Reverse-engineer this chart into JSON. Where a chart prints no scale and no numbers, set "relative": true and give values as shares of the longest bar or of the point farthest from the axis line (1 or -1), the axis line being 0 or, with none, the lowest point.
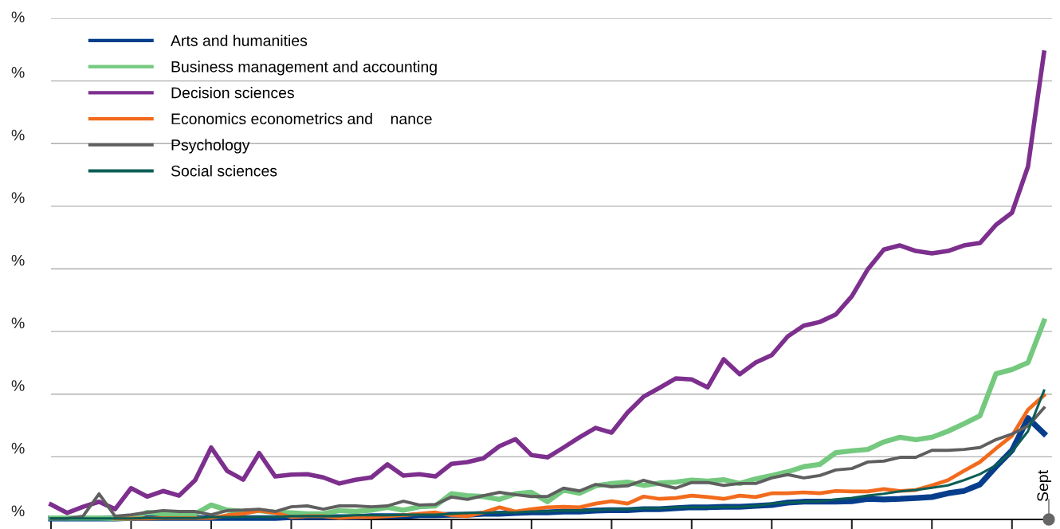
{
  "chart_data": {
    "type": "line",
    "relative": true,
    "grid": "y",
    "legend": "top left",
    "marker": "none",
    "line_style": "solid",
    "annotations": [
      "%",
      "%",
      "%",
      "%",
      "%",
      "%",
      "%",
      "%",
      "%",
      {
        "text": "Sept"
      }
    ],
    "categories": [
      null,
      null,
      null,
      null,
      null,
      null,
      null,
      null,
      null,
      null,
      null,
      null,
      null,
      null,
      null,
      null,
      null,
      null,
      null,
      null,
      null,
      null,
      null,
      null,
      null,
      null,
      null,
      null,
      null,
      null,
      null,
      null,
      null,
      null,
      null,
      null,
      null,
      null,
      null,
      null,
      null,
      null,
      null,
      null,
      null,
      null,
      null,
      null,
      null,
      null,
      null,
      null,
      null,
      null,
      null,
      null,
      null,
      null,
      null,
      null,
      null,
      null,
      null
    ],
    "series": [
      {
        "name": "Arts and humanities",
        "color": "#063e8c",
        "values": [
          0.002,
          0.002,
          0.002,
          0.002,
          0.002,
          0.003,
          0.003,
          0.003,
          0.003,
          0.003,
          0.003,
          0.003,
          0.003,
          0.003,
          0.003,
          0.005,
          0.005,
          0.005,
          0.005,
          0.005,
          0.007,
          0.007,
          0.007,
          0.009,
          0.009,
          0.01,
          0.01,
          0.012,
          0.012,
          0.014,
          0.015,
          0.015,
          0.017,
          0.017,
          0.019,
          0.02,
          0.02,
          0.022,
          0.022,
          0.024,
          0.026,
          0.026,
          0.027,
          0.027,
          0.029,
          0.031,
          0.036,
          0.038,
          0.038,
          0.038,
          0.039,
          0.044,
          0.043,
          0.044,
          0.046,
          0.048,
          0.056,
          0.061,
          0.075,
          0.113,
          0.148,
          0.217,
          0.184
        ]
      },
      {
        "name": "Business management and accounting",
        "color": "#74c97f",
        "values": [
          0.003,
          0.003,
          0.003,
          0.003,
          0.002,
          0.003,
          0.015,
          0.012,
          0.012,
          0.012,
          0.031,
          0.02,
          0.017,
          0.019,
          0.015,
          0.014,
          0.012,
          0.012,
          0.019,
          0.017,
          0.02,
          0.026,
          0.02,
          0.027,
          0.029,
          0.055,
          0.051,
          0.049,
          0.043,
          0.055,
          0.058,
          0.038,
          0.063,
          0.056,
          0.072,
          0.077,
          0.08,
          0.073,
          0.078,
          0.08,
          0.084,
          0.082,
          0.085,
          0.077,
          0.087,
          0.094,
          0.102,
          0.113,
          0.118,
          0.143,
          0.147,
          0.15,
          0.166,
          0.176,
          0.171,
          0.176,
          0.189,
          0.205,
          0.222,
          0.312,
          0.321,
          0.336,
          0.425
        ]
      },
      {
        "name": "Decision sciences",
        "color": "#7d2f8e",
        "values": [
          0.032,
          0.014,
          0.027,
          0.038,
          0.022,
          0.067,
          0.049,
          0.061,
          0.051,
          0.084,
          0.154,
          0.104,
          0.085,
          0.142,
          0.092,
          0.096,
          0.097,
          0.09,
          0.077,
          0.085,
          0.09,
          0.118,
          0.094,
          0.097,
          0.092,
          0.119,
          0.123,
          0.131,
          0.157,
          0.172,
          0.138,
          0.133,
          0.154,
          0.176,
          0.196,
          0.186,
          0.229,
          0.263,
          0.282,
          0.302,
          0.3,
          0.283,
          0.343,
          0.311,
          0.336,
          0.352,
          0.392,
          0.415,
          0.423,
          0.439,
          0.478,
          0.536,
          0.578,
          0.587,
          0.575,
          0.57,
          0.575,
          0.587,
          0.592,
          0.631,
          0.657,
          0.756,
          1
        ]
      },
      {
        "name": "Economics econometrics and    nance",
        "color": "#f26b1d",
        "values": [
          null,
          null,
          null,
          null,
          0.002,
          0.002,
          0.002,
          0.003,
          0.003,
          0.003,
          0.003,
          0.009,
          0.012,
          0.019,
          0.014,
          0.005,
          0.007,
          0.007,
          0.003,
          0.005,
          0.005,
          0.007,
          0.009,
          0.012,
          0.015,
          0.009,
          0.007,
          0.015,
          0.026,
          0.017,
          0.022,
          0.026,
          0.027,
          0.026,
          0.034,
          0.039,
          0.034,
          0.049,
          0.044,
          0.046,
          0.051,
          0.048,
          0.044,
          0.051,
          0.048,
          0.056,
          0.056,
          0.058,
          0.056,
          0.061,
          0.06,
          0.06,
          0.065,
          0.061,
          0.063,
          0.073,
          0.084,
          0.104,
          0.123,
          0.152,
          0.179,
          0.235,
          0.266
        ]
      },
      {
        "name": "Psychology",
        "color": "#5f5f5f",
        "values": [
          0.002,
          0.002,
          0.007,
          0.055,
          0.007,
          0.01,
          0.015,
          0.019,
          0.017,
          0.017,
          0.01,
          0.019,
          0.02,
          0.022,
          0.017,
          0.027,
          0.029,
          0.022,
          0.029,
          0.029,
          0.027,
          0.029,
          0.039,
          0.031,
          0.032,
          0.048,
          0.043,
          0.051,
          0.058,
          0.053,
          0.049,
          0.049,
          0.067,
          0.061,
          0.075,
          0.07,
          0.072,
          0.084,
          0.075,
          0.067,
          0.079,
          0.079,
          0.073,
          0.077,
          0.077,
          0.089,
          0.096,
          0.089,
          0.094,
          0.106,
          0.109,
          0.123,
          0.125,
          0.133,
          0.133,
          0.148,
          0.148,
          0.15,
          0.154,
          0.171,
          0.183,
          0.2,
          0.239
        ]
      },
      {
        "name": "Social sciences",
        "color": "#0b5e55",
        "values": [
          0.002,
          0.002,
          0.002,
          0.002,
          0.002,
          0.002,
          0.003,
          0.003,
          0.003,
          0.003,
          0.005,
          0.005,
          0.005,
          0.005,
          0.005,
          0.007,
          0.007,
          0.007,
          0.007,
          0.009,
          0.009,
          0.009,
          0.01,
          0.01,
          0.01,
          0.012,
          0.014,
          0.014,
          0.015,
          0.015,
          0.017,
          0.017,
          0.019,
          0.019,
          0.02,
          0.022,
          0.022,
          0.024,
          0.024,
          0.026,
          0.026,
          0.026,
          0.027,
          0.027,
          0.029,
          0.034,
          0.036,
          0.038,
          0.039,
          0.043,
          0.046,
          0.051,
          0.055,
          0.06,
          0.063,
          0.068,
          0.073,
          0.084,
          0.097,
          0.116,
          0.145,
          0.189,
          0.276
        ]
      }
    ]
  }
}
